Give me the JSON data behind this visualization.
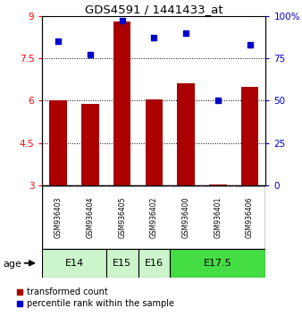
{
  "title": "GDS4591 / 1441433_at",
  "samples": [
    "GSM936403",
    "GSM936404",
    "GSM936405",
    "GSM936402",
    "GSM936400",
    "GSM936401",
    "GSM936406"
  ],
  "red_values": [
    6.0,
    5.9,
    8.8,
    6.05,
    6.6,
    3.05,
    6.5
  ],
  "blue_values": [
    85,
    77,
    97,
    87,
    90,
    50,
    83
  ],
  "ylim_left": [
    3,
    9
  ],
  "ylim_right": [
    0,
    100
  ],
  "yticks_left": [
    3,
    4.5,
    6,
    7.5,
    9
  ],
  "yticks_right": [
    0,
    25,
    50,
    75,
    100
  ],
  "ytick_labels_left": [
    "3",
    "4.5",
    "6",
    "7.5",
    "9"
  ],
  "ytick_labels_right": [
    "0",
    "25",
    "50",
    "75",
    "100%"
  ],
  "age_groups": [
    {
      "label": "E14",
      "start": 0,
      "end": 1,
      "color": "#ccf5cc"
    },
    {
      "label": "E15",
      "start": 2,
      "end": 2,
      "color": "#ccf5cc"
    },
    {
      "label": "E16",
      "start": 3,
      "end": 3,
      "color": "#ccf5cc"
    },
    {
      "label": "E17.5",
      "start": 4,
      "end": 6,
      "color": "#44dd44"
    }
  ],
  "bar_color": "#aa0000",
  "dot_color": "#0000cc",
  "sample_bg_color": "#cccccc",
  "legend_red": "transformed count",
  "legend_blue": "percentile rank within the sample",
  "age_label": "age"
}
